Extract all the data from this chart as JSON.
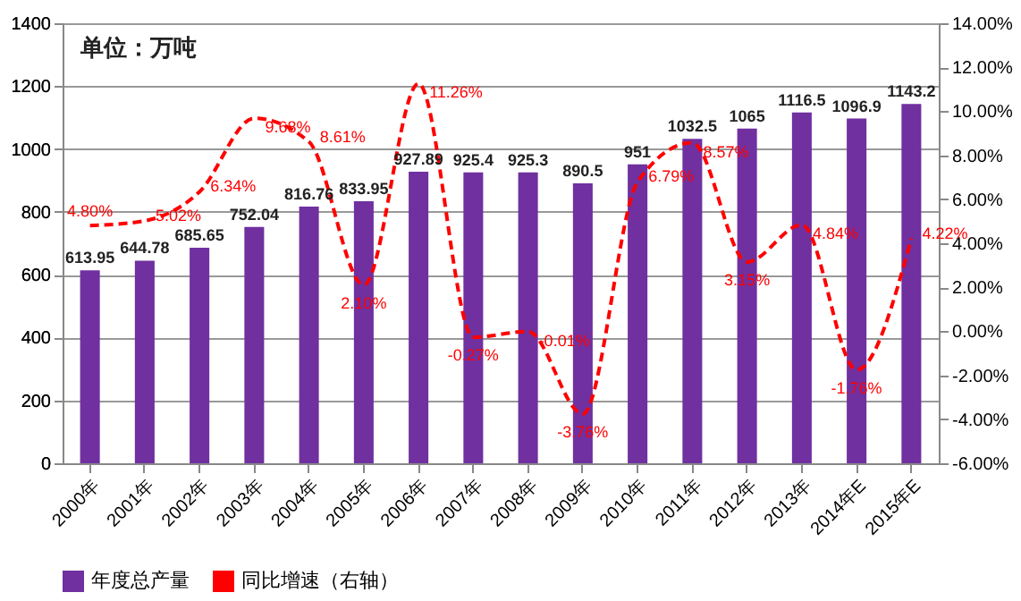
{
  "chart_data": {
    "type": "bar",
    "categories": [
      "2000年",
      "2001年",
      "2002年",
      "2003年",
      "2004年",
      "2005年",
      "2006年",
      "2007年",
      "2008年",
      "2009年",
      "2010年",
      "2011年",
      "2012年",
      "2013年",
      "2014年E",
      "2015年E"
    ],
    "series": [
      {
        "name": "年度总产量",
        "type": "bar",
        "color": "#7030a0",
        "values": [
          613.95,
          644.78,
          685.65,
          752.04,
          816.76,
          833.95,
          927.89,
          925.4,
          925.3,
          890.5,
          951,
          1032.5,
          1065,
          1116.5,
          1096.9,
          1143.2
        ]
      },
      {
        "name": "同比增速（右轴）",
        "type": "line",
        "axis": "y2",
        "color": "#ff0000",
        "line_style": "dashed",
        "marker": "none",
        "values": [
          4.8,
          5.02,
          6.34,
          9.68,
          8.61,
          2.1,
          11.26,
          -0.27,
          -0.01,
          -3.76,
          6.79,
          8.57,
          3.15,
          4.84,
          -1.76,
          4.22
        ],
        "value_labels": [
          "4.80%",
          "5.02%",
          "6.34%",
          "9.68%",
          "8.61%",
          "2.10%",
          "11.26%",
          "-0.27%",
          "-0.01%",
          "-3.76%",
          "6.79%",
          "8.57%",
          "3.15%",
          "4.84%",
          "-1.76%",
          "4.22%"
        ]
      }
    ],
    "ylim": [
      0,
      1400
    ],
    "yticks": [
      0,
      200,
      400,
      600,
      800,
      1000,
      1200,
      1400
    ],
    "y2lim": [
      -6,
      14
    ],
    "y2ticks": [
      {
        "value": -6,
        "label": "-6.00%"
      },
      {
        "value": -4,
        "label": "-4.00%"
      },
      {
        "value": -2,
        "label": "-2.00%"
      },
      {
        "value": 0,
        "label": "0.00%"
      },
      {
        "value": 2,
        "label": "2.00%"
      },
      {
        "value": 4,
        "label": "4.00%"
      },
      {
        "value": 6,
        "label": "6.00%"
      },
      {
        "value": 8,
        "label": "8.00%"
      },
      {
        "value": 10,
        "label": "10.00%"
      },
      {
        "value": 12,
        "label": "12.00%"
      },
      {
        "value": 14,
        "label": "14.00%"
      }
    ],
    "data_labels": true,
    "grid": "y",
    "legend": "bottom",
    "annotations": [
      "单位：万吨"
    ]
  }
}
